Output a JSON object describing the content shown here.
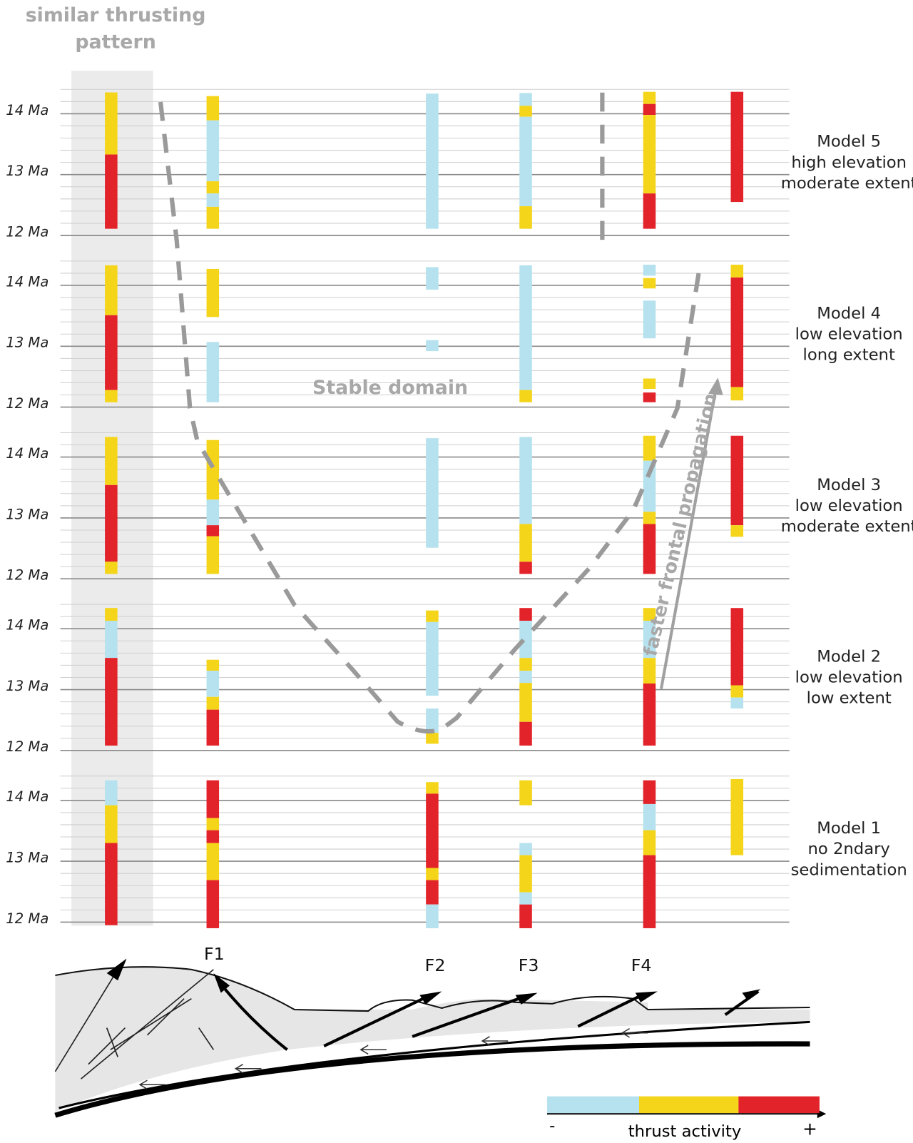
{
  "header": {
    "title_lines": [
      "similar thrusting",
      "pattern"
    ]
  },
  "time_axis": {
    "ticks": [
      {
        "value": 14,
        "label": "14 Ma"
      },
      {
        "value": 13,
        "label": "13 Ma"
      },
      {
        "value": 12,
        "label": "12 Ma"
      }
    ],
    "range": [
      14.4,
      12
    ],
    "grid_step": 0.2
  },
  "activity_levels": {
    "colors": [
      "#b5e2ee",
      "#f4d51a",
      "#e2232a"
    ],
    "low_label": "-",
    "title": "thrust activity",
    "high_label": "+"
  },
  "faults": [
    "F1",
    "F2",
    "F3",
    "F4"
  ],
  "annotations": {
    "stable_domain": "Stable domain",
    "propagation": "faster frontal propagation"
  },
  "models": [
    {
      "label_lines": [
        "Model 5",
        "high elevation",
        "moderate extent"
      ],
      "columns": [
        [
          {
            "from": 14.35,
            "to": 13.33,
            "level": 1
          },
          {
            "from": 13.33,
            "to": 12.11,
            "level": 2
          }
        ],
        [
          {
            "from": 14.29,
            "to": 13.89,
            "level": 1
          },
          {
            "from": 13.89,
            "to": 12.89,
            "level": 0
          },
          {
            "from": 12.89,
            "to": 12.69,
            "level": 1
          },
          {
            "from": 12.69,
            "to": 12.47,
            "level": 0
          },
          {
            "from": 12.47,
            "to": 12.11,
            "level": 1
          }
        ],
        [
          {
            "from": 14.33,
            "to": 12.11,
            "level": 0
          }
        ],
        [
          {
            "from": 14.34,
            "to": 14.13,
            "level": 0
          },
          {
            "from": 14.13,
            "to": 13.95,
            "level": 1
          },
          {
            "from": 13.95,
            "to": 12.48,
            "level": 0
          },
          {
            "from": 12.48,
            "to": 12.11,
            "level": 1
          }
        ],
        [
          {
            "from": 14.36,
            "to": 14.16,
            "level": 1
          },
          {
            "from": 14.16,
            "to": 13.98,
            "level": 2
          },
          {
            "from": 13.98,
            "to": 12.69,
            "level": 1
          },
          {
            "from": 12.69,
            "to": 12.11,
            "level": 2
          }
        ],
        [
          {
            "from": 14.36,
            "to": 12.55,
            "level": 2
          }
        ]
      ]
    },
    {
      "label_lines": [
        "Model 4",
        "low elevation",
        "long extent"
      ],
      "columns": [
        [
          {
            "from": 14.33,
            "to": 13.51,
            "level": 1
          },
          {
            "from": 13.51,
            "to": 12.28,
            "level": 2
          },
          {
            "from": 12.28,
            "to": 12.08,
            "level": 1
          }
        ],
        [
          {
            "from": 14.27,
            "to": 13.48,
            "level": 1
          },
          {
            "from": 13.07,
            "to": 12.08,
            "level": 0
          }
        ],
        [
          {
            "from": 14.3,
            "to": 13.93,
            "level": 0
          },
          {
            "from": 13.1,
            "to": 12.92,
            "level": 0
          }
        ],
        [
          {
            "from": 14.33,
            "to": 12.28,
            "level": 0
          },
          {
            "from": 12.28,
            "to": 12.08,
            "level": 1
          }
        ],
        [
          {
            "from": 14.34,
            "to": 14.16,
            "level": 0
          },
          {
            "from": 14.12,
            "to": 13.95,
            "level": 1
          },
          {
            "from": 13.75,
            "to": 13.13,
            "level": 0
          },
          {
            "from": 12.47,
            "to": 12.3,
            "level": 1
          },
          {
            "from": 12.24,
            "to": 12.08,
            "level": 2
          }
        ],
        [
          {
            "from": 14.34,
            "to": 14.13,
            "level": 1
          },
          {
            "from": 14.13,
            "to": 12.33,
            "level": 2
          },
          {
            "from": 12.33,
            "to": 12.11,
            "level": 1
          }
        ]
      ]
    },
    {
      "label_lines": [
        "Model 3",
        "low elevation",
        "moderate extent"
      ],
      "columns": [
        [
          {
            "from": 14.33,
            "to": 13.54,
            "level": 1
          },
          {
            "from": 13.54,
            "to": 12.28,
            "level": 2
          },
          {
            "from": 12.28,
            "to": 12.08,
            "level": 1
          }
        ],
        [
          {
            "from": 14.28,
            "to": 13.3,
            "level": 1
          },
          {
            "from": 13.3,
            "to": 12.88,
            "level": 0
          },
          {
            "from": 12.88,
            "to": 12.7,
            "level": 2
          },
          {
            "from": 12.7,
            "to": 12.08,
            "level": 1
          }
        ],
        [
          {
            "from": 14.31,
            "to": 12.51,
            "level": 0
          }
        ],
        [
          {
            "from": 14.33,
            "to": 12.9,
            "level": 0
          },
          {
            "from": 12.9,
            "to": 12.28,
            "level": 1
          },
          {
            "from": 12.28,
            "to": 12.08,
            "level": 2
          }
        ],
        [
          {
            "from": 14.35,
            "to": 13.94,
            "level": 1
          },
          {
            "from": 13.94,
            "to": 13.1,
            "level": 0
          },
          {
            "from": 13.1,
            "to": 12.9,
            "level": 1
          },
          {
            "from": 12.9,
            "to": 12.08,
            "level": 2
          }
        ],
        [
          {
            "from": 14.35,
            "to": 12.88,
            "level": 2
          },
          {
            "from": 12.88,
            "to": 12.69,
            "level": 1
          }
        ]
      ]
    },
    {
      "label_lines": [
        "Model 2",
        "low elevation",
        "low extent"
      ],
      "columns": [
        [
          {
            "from": 14.34,
            "to": 14.13,
            "level": 1
          },
          {
            "from": 14.13,
            "to": 13.52,
            "level": 0
          },
          {
            "from": 13.52,
            "to": 12.08,
            "level": 2
          }
        ],
        [
          {
            "from": 13.49,
            "to": 13.31,
            "level": 1
          },
          {
            "from": 13.31,
            "to": 12.88,
            "level": 0
          },
          {
            "from": 12.88,
            "to": 12.67,
            "level": 1
          },
          {
            "from": 12.67,
            "to": 12.08,
            "level": 2
          }
        ],
        [
          {
            "from": 14.3,
            "to": 14.11,
            "level": 1
          },
          {
            "from": 14.11,
            "to": 12.9,
            "level": 0
          },
          {
            "from": 12.69,
            "to": 12.29,
            "level": 0
          },
          {
            "from": 12.29,
            "to": 12.11,
            "level": 1
          }
        ],
        [
          {
            "from": 14.34,
            "to": 14.13,
            "level": 2
          },
          {
            "from": 14.13,
            "to": 13.52,
            "level": 0
          },
          {
            "from": 13.52,
            "to": 13.31,
            "level": 1
          },
          {
            "from": 13.31,
            "to": 13.11,
            "level": 0
          },
          {
            "from": 13.11,
            "to": 12.47,
            "level": 1
          },
          {
            "from": 12.47,
            "to": 12.08,
            "level": 2
          }
        ],
        [
          {
            "from": 14.34,
            "to": 14.13,
            "level": 1
          },
          {
            "from": 14.13,
            "to": 13.52,
            "level": 0
          },
          {
            "from": 13.52,
            "to": 13.1,
            "level": 1
          },
          {
            "from": 13.1,
            "to": 12.08,
            "level": 2
          }
        ],
        [
          {
            "from": 14.34,
            "to": 13.07,
            "level": 2
          },
          {
            "from": 13.07,
            "to": 12.87,
            "level": 1
          },
          {
            "from": 12.87,
            "to": 12.69,
            "level": 0
          }
        ]
      ]
    },
    {
      "label_lines": [
        "Model 1",
        "no 2ndary",
        "sedimentation"
      ],
      "columns": [
        [
          {
            "from": 14.33,
            "to": 13.92,
            "level": 0
          },
          {
            "from": 13.92,
            "to": 13.3,
            "level": 1
          },
          {
            "from": 13.3,
            "to": 11.95,
            "level": 2
          }
        ],
        [
          {
            "from": 14.33,
            "to": 13.71,
            "level": 2
          },
          {
            "from": 13.71,
            "to": 13.51,
            "level": 1
          },
          {
            "from": 13.51,
            "to": 13.3,
            "level": 2
          },
          {
            "from": 13.3,
            "to": 12.69,
            "level": 1
          },
          {
            "from": 12.69,
            "to": 11.9,
            "level": 2
          }
        ],
        [
          {
            "from": 14.3,
            "to": 14.11,
            "level": 1
          },
          {
            "from": 14.11,
            "to": 12.89,
            "level": 2
          },
          {
            "from": 12.89,
            "to": 12.69,
            "level": 1
          },
          {
            "from": 12.69,
            "to": 12.29,
            "level": 2
          },
          {
            "from": 12.29,
            "to": 11.9,
            "level": 0
          }
        ],
        [
          {
            "from": 14.33,
            "to": 13.92,
            "level": 1
          },
          {
            "from": 13.3,
            "to": 13.1,
            "level": 0
          },
          {
            "from": 13.1,
            "to": 12.49,
            "level": 1
          },
          {
            "from": 12.49,
            "to": 12.29,
            "level": 0
          },
          {
            "from": 12.29,
            "to": 11.9,
            "level": 2
          }
        ],
        [
          {
            "from": 14.33,
            "to": 13.94,
            "level": 2
          },
          {
            "from": 13.94,
            "to": 13.51,
            "level": 0
          },
          {
            "from": 13.51,
            "to": 13.1,
            "level": 1
          },
          {
            "from": 13.1,
            "to": 11.9,
            "level": 2
          }
        ],
        [
          {
            "from": 14.35,
            "to": 13.1,
            "level": 1
          }
        ]
      ]
    }
  ]
}
